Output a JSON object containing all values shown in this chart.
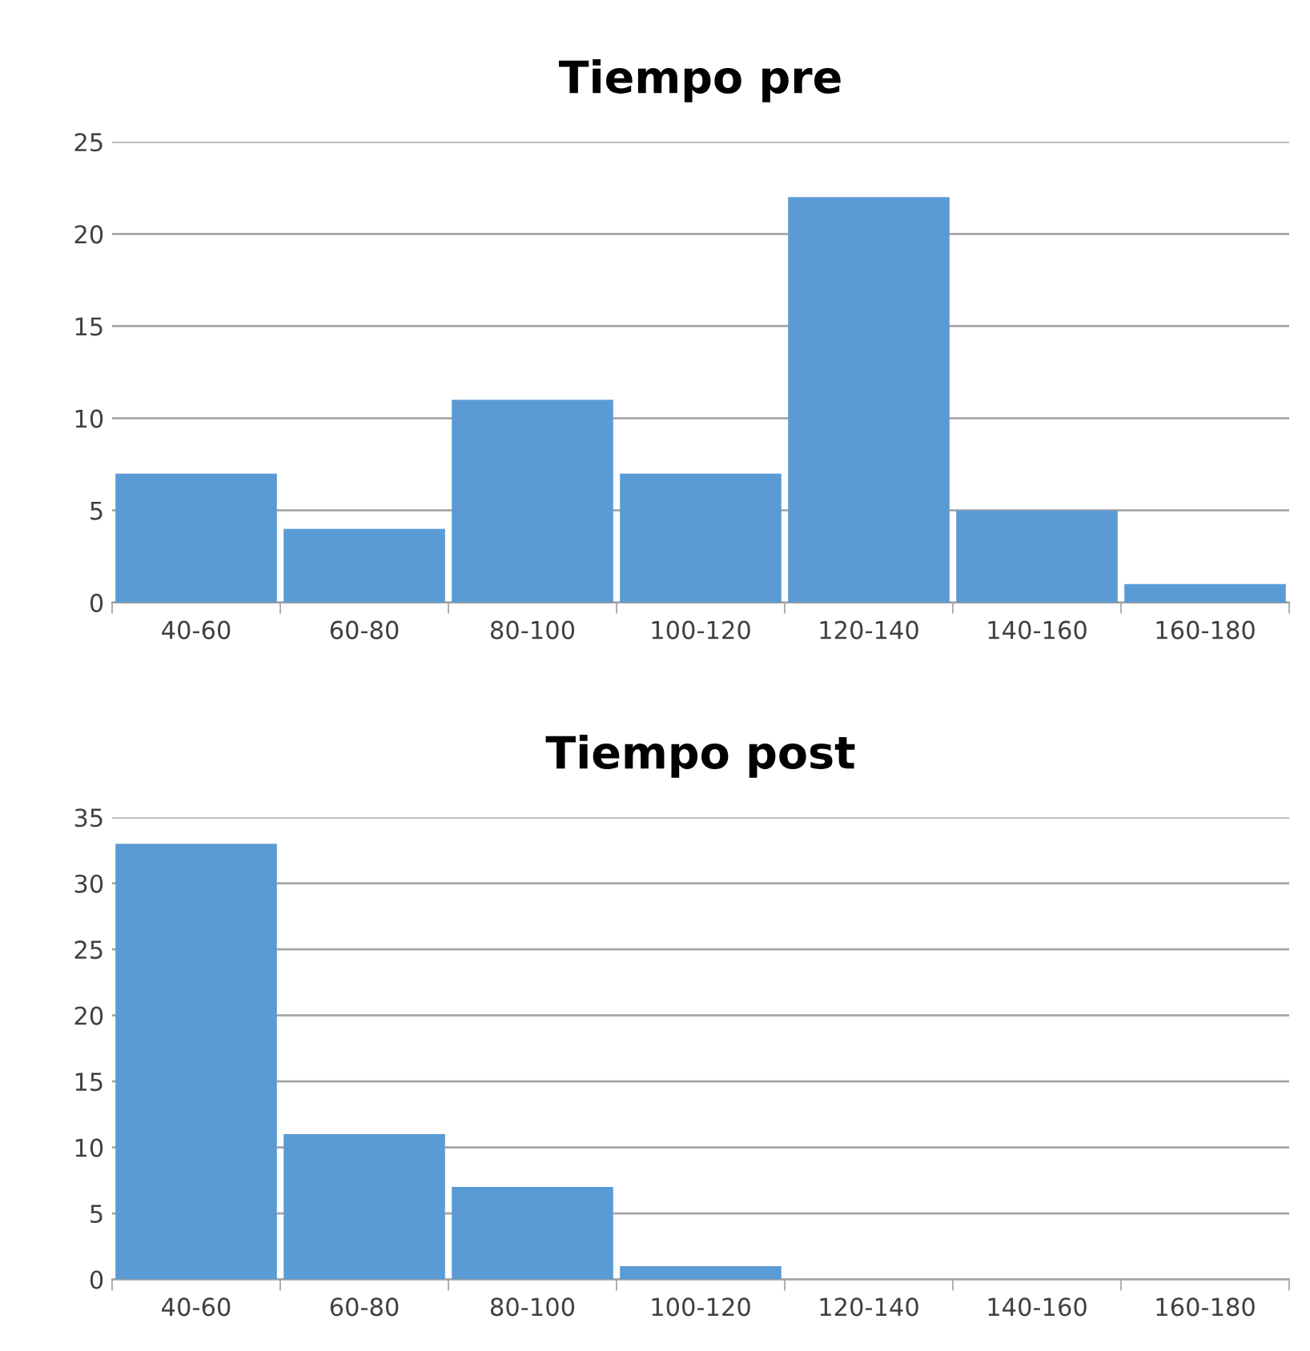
{
  "chart_data": [
    {
      "type": "bar",
      "title": "Tiempo pre",
      "categories": [
        "40-60",
        "60-80",
        "80-100",
        "100-120",
        "120-140",
        "140-160",
        "160-180"
      ],
      "values": [
        7,
        4,
        11,
        7,
        22,
        5,
        1
      ],
      "color": "#5b9bd5",
      "ylim": [
        0,
        25
      ],
      "yticks": [
        0,
        5,
        10,
        15,
        20,
        25
      ],
      "grid": "y"
    },
    {
      "type": "bar",
      "title": "Tiempo post",
      "categories": [
        "40-60",
        "60-80",
        "80-100",
        "100-120",
        "120-140",
        "140-160",
        "160-180"
      ],
      "values": [
        33,
        11,
        7,
        1,
        0,
        0,
        0
      ],
      "color": "#5b9bd5",
      "ylim": [
        0,
        35
      ],
      "yticks": [
        0,
        5,
        10,
        15,
        20,
        25,
        30,
        35
      ],
      "grid": "y"
    }
  ]
}
